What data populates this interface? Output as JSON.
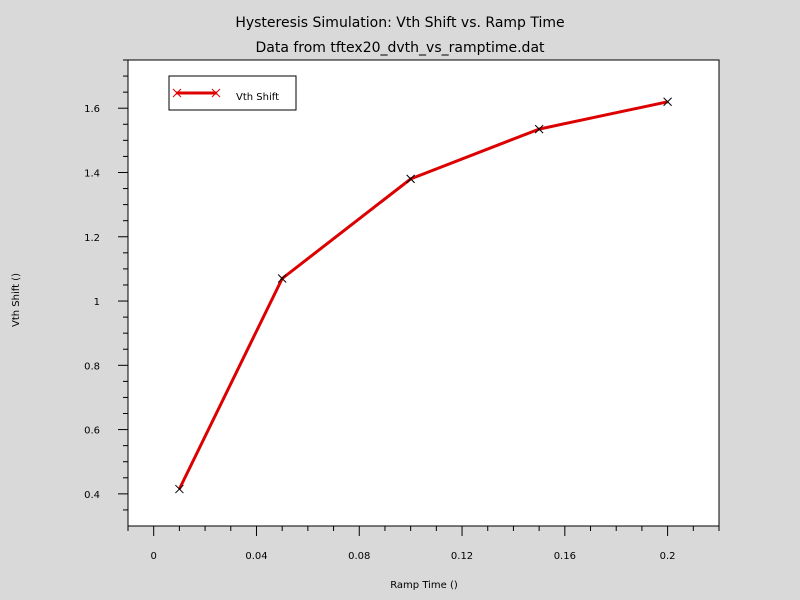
{
  "chart_data": {
    "type": "line",
    "title": "Hysteresis Simulation: Vth Shift vs. Ramp Time",
    "subtitle": "Data from tftex20_dvth_vs_ramptime.dat",
    "xlabel": "Ramp Time ()",
    "ylabel": "Vth Shift ()",
    "xlim": [
      -0.01,
      0.22
    ],
    "ylim": [
      0.3,
      1.75
    ],
    "x_ticks": [
      0,
      0.04,
      0.08,
      0.12,
      0.16,
      0.2
    ],
    "x_tick_labels": [
      "0",
      "0.04",
      "0.08",
      "0.12",
      "0.16",
      "0.2"
    ],
    "y_ticks": [
      0.4,
      0.6,
      0.8,
      1.0,
      1.2,
      1.4,
      1.6
    ],
    "y_tick_labels": [
      "0.4",
      "0.6",
      "0.8",
      "1",
      "1.2",
      "1.4",
      "1.6"
    ],
    "grid": false,
    "legend_position": "top-left",
    "series": [
      {
        "name": "Vth Shift",
        "color": "#dd0000",
        "marker": "x",
        "x": [
          0.01,
          0.05,
          0.1,
          0.15,
          0.2
        ],
        "values": [
          0.415,
          1.07,
          1.38,
          1.535,
          1.62
        ]
      }
    ]
  }
}
